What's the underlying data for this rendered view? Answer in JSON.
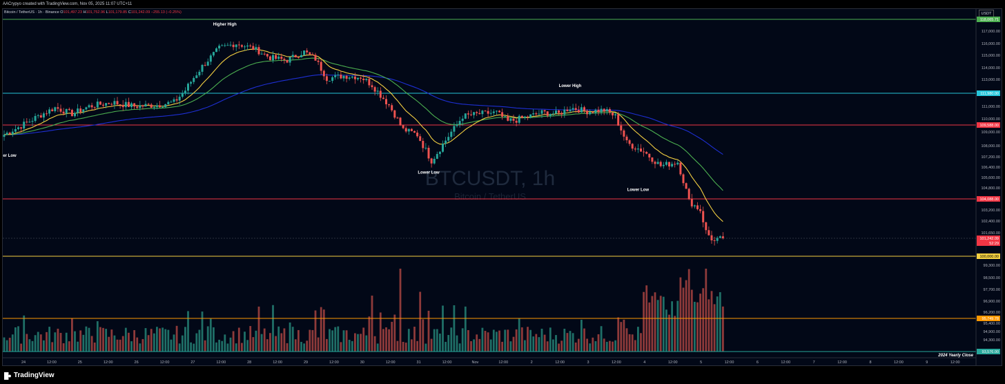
{
  "header": {
    "attribution": "AACrypyo created with TradingView.com, Nov 05, 2025 11:07 UTC+11",
    "symbol_line": "Bitcoin / TetherUS · 1h · Binance",
    "ohlc": {
      "o_label": "O",
      "o": "101,497.23",
      "h_label": "H",
      "h": "101,752.96",
      "l_label": "L",
      "l": "101,179.85",
      "c_label": "C",
      "c": "101,242.09",
      "change": "−255.13 (−0.25%)"
    },
    "currency": "USDT"
  },
  "footer": {
    "logo_text": "TradingView",
    "logo_icon": "tradingview-logo-icon"
  },
  "colors": {
    "up": "#26a69a",
    "down": "#ef5350",
    "ema_fast": "#f5d142",
    "ema_mid": "#4caf50",
    "ema_slow": "#1e2fd4",
    "bg": "#020817"
  },
  "chart_data": {
    "type": "candlestick",
    "watermark": {
      "title": "BTCUSDT, 1h",
      "subtitle": "Bitcoin / TetherUS"
    },
    "y_axis": {
      "ticks": [
        "117,000.00",
        "116,000.00",
        "115,000.00",
        "114,000.00",
        "113,000.00",
        "111,000.00",
        "110,000.00",
        "109,000.00",
        "108,000.00",
        "107,200.00",
        "106,400.00",
        "105,600.00",
        "104,800.00",
        "103,200.00",
        "102,400.00",
        "101,650.00",
        "99,300.00",
        "98,500.00",
        "97,700.00",
        "96,900.00",
        "96,200.00",
        "95,400.00",
        "94,900.00",
        "94,300.00"
      ],
      "tick_values": [
        117000,
        116000,
        115000,
        114000,
        113000,
        111000,
        110000,
        109000,
        108000,
        107200,
        106400,
        105600,
        104800,
        103200,
        102400,
        101650,
        99300,
        98500,
        97700,
        96900,
        96200,
        95400,
        94900,
        94300
      ]
    },
    "price_levels": [
      {
        "value": 118065.71,
        "label": "118,065.71",
        "color": "#4caf50"
      },
      {
        "value": 111980,
        "label": "111,980.00",
        "color": "#26c6da"
      },
      {
        "value": 109588,
        "label": "109,588.00",
        "color": "#f23645"
      },
      {
        "value": 104088,
        "label": "104,088.00",
        "color": "#f23645"
      },
      {
        "value": 100000,
        "label": "100,000.00",
        "color": "#f5d142"
      },
      {
        "value": 95749.78,
        "label": "95,749.78",
        "color": "#ff9800"
      },
      {
        "value": 93576,
        "label": "93,576.00",
        "color": "#26a69a"
      }
    ],
    "current_price": {
      "value": 101242.09,
      "label": "101,242.09",
      "countdown": "52:29"
    },
    "x_axis": {
      "labels": [
        "24",
        "12:00",
        "25",
        "12:00",
        "26",
        "12:00",
        "27",
        "12:00",
        "28",
        "12:00",
        "29",
        "12:00",
        "30",
        "12:00",
        "31",
        "12:00",
        "Nov",
        "12:00",
        "2",
        "12:00",
        "3",
        "12:00",
        "4",
        "12:00",
        "5",
        "12:00",
        "6",
        "12:00",
        "7",
        "12:00",
        "8",
        "12:00",
        "9",
        "12:00"
      ]
    },
    "annotations": [
      {
        "text": "Higher High",
        "bar": 78,
        "price": 117500
      },
      {
        "text": "Lower High",
        "bar": 200,
        "price": 112450
      },
      {
        "text": "Lower Low",
        "bar": 150,
        "price": 105900
      },
      {
        "text": "Lower Low",
        "bar": 224,
        "price": 104600
      },
      {
        "text": "er Low",
        "bar": -1,
        "price": 107200
      }
    ],
    "yearly_close_label": "2024 Yearly Close",
    "anchors": [
      [
        0,
        108800
      ],
      [
        6,
        109500
      ],
      [
        12,
        110200
      ],
      [
        18,
        110900
      ],
      [
        24,
        110400
      ],
      [
        30,
        111000
      ],
      [
        38,
        111300
      ],
      [
        46,
        111000
      ],
      [
        54,
        111100
      ],
      [
        60,
        111300
      ],
      [
        64,
        112200
      ],
      [
        70,
        114100
      ],
      [
        76,
        115600
      ],
      [
        82,
        116000
      ],
      [
        88,
        115600
      ],
      [
        94,
        114800
      ],
      [
        100,
        114600
      ],
      [
        106,
        115300
      ],
      [
        110,
        114700
      ],
      [
        114,
        113100
      ],
      [
        120,
        113300
      ],
      [
        126,
        113200
      ],
      [
        130,
        112600
      ],
      [
        136,
        111100
      ],
      [
        141,
        109200
      ],
      [
        146,
        108800
      ],
      [
        151,
        106900
      ],
      [
        156,
        108400
      ],
      [
        162,
        110200
      ],
      [
        168,
        110400
      ],
      [
        174,
        110500
      ],
      [
        178,
        109800
      ],
      [
        184,
        110100
      ],
      [
        190,
        110500
      ],
      [
        196,
        110400
      ],
      [
        200,
        110900
      ],
      [
        206,
        110600
      ],
      [
        212,
        110700
      ],
      [
        216,
        110200
      ],
      [
        220,
        108200
      ],
      [
        226,
        107600
      ],
      [
        232,
        106500
      ],
      [
        238,
        106800
      ],
      [
        242,
        103900
      ],
      [
        246,
        103200
      ],
      [
        248,
        101700
      ],
      [
        251,
        101000
      ],
      [
        254,
        101242
      ]
    ]
  }
}
